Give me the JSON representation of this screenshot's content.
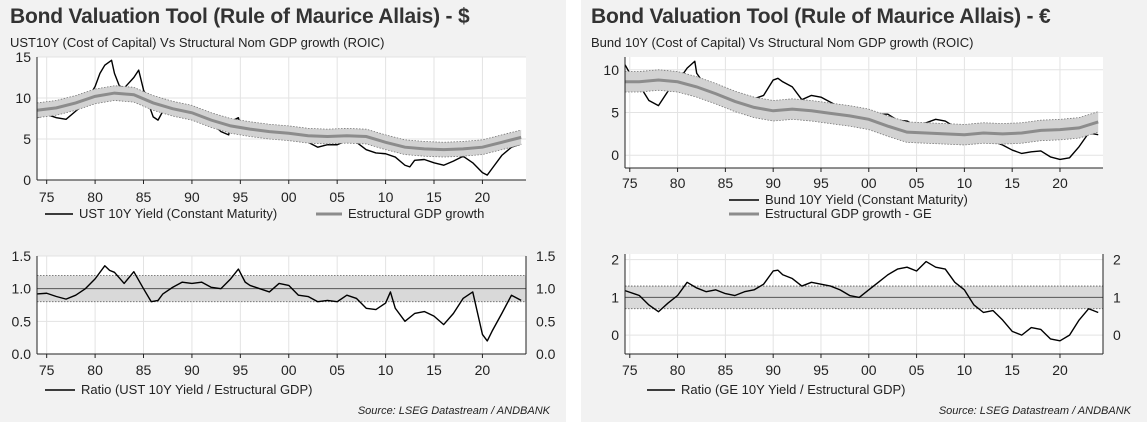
{
  "panels": [
    {
      "title": "Bond Valuation Tool (Rule of Maurice Allais) - $",
      "subtitle": "UST10Y (Cost of Capital) Vs Structural Nom GDP growth (ROIC)",
      "source": "Source: LSEG Datastream / ANDBANK"
    },
    {
      "title": "Bond Valuation Tool (Rule of Maurice Allais) - €",
      "subtitle": "Bund 10Y (Cost of Capital) Vs Structural Nom GDP growth (ROIC)",
      "source": "Source: LSEG Datastream / ANDBANK"
    }
  ],
  "chart_data": [
    {
      "id": "us-yield",
      "type": "line",
      "x_tick_labels": [
        "75",
        "80",
        "85",
        "90",
        "95",
        "00",
        "05",
        "10",
        "15",
        "20"
      ],
      "x_tick_years": [
        1975,
        1980,
        1985,
        1990,
        1995,
        2000,
        2005,
        2010,
        2015,
        2020
      ],
      "xlim": [
        1974,
        2024.5
      ],
      "ylim": [
        0,
        15
      ],
      "y_ticks": [
        0,
        5,
        10,
        15
      ],
      "y_tick_labels": [
        "0",
        "5",
        "10",
        "15"
      ],
      "grid": true,
      "legend_position": "bottom",
      "series": [
        {
          "name": "UST 10Y Yield (Constant Maturity)",
          "color": "#000000",
          "x": [
            1974,
            1975,
            1976,
            1977,
            1978,
            1979,
            1980,
            1980.5,
            1981,
            1981.7,
            1982,
            1982.5,
            1983,
            1984,
            1984.5,
            1985,
            1986,
            1986.5,
            1987,
            1988,
            1989,
            1990,
            1991,
            1992,
            1993,
            1993.8,
            1994,
            1994.8,
            1995,
            1996,
            1997,
            1998,
            1999,
            2000,
            2001,
            2002,
            2003,
            2004,
            2005,
            2006,
            2007,
            2008,
            2009,
            2010,
            2011,
            2012,
            2012.5,
            2013,
            2014,
            2015,
            2016,
            2017,
            2018,
            2019,
            2020,
            2020.5,
            2021,
            2022,
            2023,
            2024
          ],
          "values": [
            7.6,
            8.0,
            7.6,
            7.4,
            8.4,
            9.4,
            11.4,
            13.0,
            14.0,
            14.6,
            13.0,
            11.5,
            11.2,
            12.5,
            13.4,
            11.0,
            7.7,
            7.3,
            8.4,
            8.8,
            8.5,
            8.6,
            7.9,
            7.0,
            5.9,
            5.5,
            7.1,
            7.6,
            6.6,
            6.4,
            6.4,
            5.3,
            5.6,
            6.0,
            5.0,
            4.6,
            4.0,
            4.3,
            4.3,
            4.8,
            4.6,
            3.7,
            3.3,
            3.2,
            2.8,
            1.8,
            1.6,
            2.4,
            2.5,
            2.1,
            1.8,
            2.3,
            2.9,
            2.1,
            0.9,
            0.6,
            1.4,
            3.0,
            4.0,
            4.4
          ]
        },
        {
          "name": "Estructural GDP growth",
          "color": "#8c8c8c",
          "band_color": "#d2d2d2",
          "x": [
            1974,
            1976,
            1978,
            1980,
            1982,
            1984,
            1986,
            1988,
            1990,
            1992,
            1994,
            1996,
            1998,
            2000,
            2002,
            2004,
            2006,
            2008,
            2010,
            2012,
            2014,
            2016,
            2018,
            2020,
            2022,
            2024
          ],
          "values": [
            8.5,
            8.8,
            9.4,
            10.2,
            10.6,
            10.4,
            9.4,
            8.7,
            8.2,
            7.3,
            6.6,
            6.2,
            5.9,
            5.7,
            5.4,
            5.3,
            5.4,
            5.3,
            4.6,
            4.0,
            3.8,
            3.7,
            3.8,
            4.0,
            4.6,
            5.2
          ],
          "band": [
            0.9,
            0.9,
            0.9,
            0.9,
            0.9,
            0.9,
            0.9,
            0.9,
            0.9,
            0.9,
            0.9,
            0.9,
            0.9,
            0.9,
            0.9,
            0.9,
            0.9,
            0.9,
            0.9,
            0.9,
            0.9,
            0.9,
            0.9,
            0.9,
            0.9,
            0.9
          ]
        }
      ]
    },
    {
      "id": "us-ratio",
      "type": "line",
      "x_tick_labels": [
        "75",
        "80",
        "85",
        "90",
        "95",
        "00",
        "05",
        "10",
        "15",
        "20"
      ],
      "x_tick_years": [
        1975,
        1980,
        1985,
        1990,
        1995,
        2000,
        2005,
        2010,
        2015,
        2020
      ],
      "xlim": [
        1974,
        2024.5
      ],
      "ylim": [
        0,
        1.5
      ],
      "y_ticks": [
        0,
        0.5,
        1.0,
        1.5
      ],
      "y_tick_labels": [
        "0.0",
        "0.5",
        "1.0",
        "1.5"
      ],
      "band_range": [
        0.8,
        1.2
      ],
      "reference": 1.0,
      "grid": true,
      "legend_position": "bottom",
      "series": [
        {
          "name": "Ratio (UST 10Y Yield / Estructural GDP)",
          "color": "#000000",
          "x": [
            1974,
            1975,
            1976,
            1977,
            1978,
            1979,
            1980,
            1981,
            1981.5,
            1982,
            1983,
            1984,
            1985,
            1985.8,
            1986.5,
            1987,
            1988,
            1989,
            1990,
            1991,
            1992,
            1993,
            1994,
            1994.8,
            1995.5,
            1996,
            1997,
            1998,
            1999,
            2000,
            2001,
            2002,
            2003,
            2004,
            2005,
            2006,
            2007,
            2008,
            2009,
            2010,
            2010.5,
            2011,
            2012,
            2013,
            2014,
            2015,
            2016,
            2017,
            2018,
            2019,
            2020,
            2020.5,
            2021,
            2022,
            2023,
            2024
          ],
          "values": [
            0.92,
            0.93,
            0.88,
            0.84,
            0.9,
            1.0,
            1.15,
            1.35,
            1.28,
            1.25,
            1.08,
            1.26,
            1.0,
            0.8,
            0.82,
            0.92,
            1.02,
            1.1,
            1.08,
            1.1,
            1.02,
            1.0,
            1.15,
            1.3,
            1.1,
            1.05,
            1.0,
            0.95,
            1.08,
            1.05,
            0.9,
            0.88,
            0.8,
            0.82,
            0.8,
            0.9,
            0.85,
            0.7,
            0.68,
            0.78,
            0.95,
            0.7,
            0.5,
            0.62,
            0.65,
            0.58,
            0.45,
            0.62,
            0.85,
            0.95,
            0.3,
            0.2,
            0.35,
            0.62,
            0.9,
            0.82
          ]
        }
      ]
    },
    {
      "id": "eu-yield",
      "type": "line",
      "x_tick_labels": [
        "75",
        "80",
        "85",
        "90",
        "95",
        "00",
        "05",
        "10",
        "15",
        "20"
      ],
      "x_tick_years": [
        1975,
        1980,
        1985,
        1990,
        1995,
        2000,
        2005,
        2010,
        2015,
        2020
      ],
      "xlim": [
        1974.5,
        2024.5
      ],
      "ylim": [
        -1.5,
        11.5
      ],
      "y_ticks": [
        0,
        5,
        10
      ],
      "y_tick_labels": [
        "0",
        "5",
        "10"
      ],
      "grid": true,
      "legend_position": "bottom",
      "series": [
        {
          "name": "Bund 10Y Yield (Constant Maturity)",
          "color": "#000000",
          "x": [
            1974.5,
            1975,
            1976,
            1977,
            1978,
            1979,
            1980,
            1981,
            1981.8,
            1982,
            1983,
            1984,
            1985,
            1986,
            1987,
            1988,
            1989,
            1990,
            1990.5,
            1991,
            1992,
            1993,
            1994,
            1995,
            1996,
            1997,
            1998,
            1999,
            2000,
            2001,
            2002,
            2003,
            2004,
            2005,
            2006,
            2007,
            2008,
            2009,
            2010,
            2011,
            2012,
            2013,
            2014,
            2015,
            2016,
            2017,
            2018,
            2019,
            2020,
            2021,
            2022,
            2023,
            2024
          ],
          "values": [
            10.6,
            9.6,
            8.2,
            6.4,
            5.8,
            7.5,
            8.6,
            10.2,
            11.0,
            9.6,
            8.0,
            7.8,
            7.0,
            6.0,
            6.2,
            6.6,
            7.0,
            8.8,
            9.0,
            8.6,
            8.0,
            6.5,
            7.0,
            6.8,
            6.2,
            5.6,
            4.6,
            4.5,
            5.2,
            4.8,
            4.8,
            4.1,
            4.0,
            3.4,
            3.8,
            4.2,
            4.0,
            3.3,
            2.8,
            2.6,
            1.5,
            1.6,
            1.2,
            0.6,
            0.2,
            0.4,
            0.5,
            -0.2,
            -0.5,
            -0.3,
            1.0,
            2.6,
            2.4
          ]
        },
        {
          "name": "Estructural GDP growth - GE",
          "color": "#8c8c8c",
          "band_color": "#d2d2d2",
          "x": [
            1974.5,
            1976,
            1978,
            1980,
            1982,
            1984,
            1986,
            1988,
            1990,
            1992,
            1994,
            1996,
            1998,
            2000,
            2002,
            2004,
            2006,
            2008,
            2010,
            2012,
            2014,
            2016,
            2018,
            2020,
            2022,
            2024
          ],
          "values": [
            8.6,
            8.6,
            8.8,
            8.6,
            8.0,
            7.2,
            6.3,
            5.6,
            5.2,
            5.4,
            5.2,
            4.9,
            4.6,
            4.2,
            3.4,
            2.7,
            2.6,
            2.5,
            2.4,
            2.6,
            2.5,
            2.6,
            2.9,
            3.0,
            3.2,
            3.9
          ],
          "band": [
            1.2,
            1.2,
            1.2,
            1.2,
            1.2,
            1.2,
            1.2,
            1.2,
            1.2,
            1.2,
            1.2,
            1.2,
            1.2,
            1.2,
            1.2,
            1.2,
            1.2,
            1.2,
            1.2,
            1.2,
            1.2,
            1.2,
            1.2,
            1.2,
            1.2,
            1.2
          ]
        }
      ]
    },
    {
      "id": "eu-ratio",
      "type": "line",
      "x_tick_labels": [
        "75",
        "80",
        "85",
        "90",
        "95",
        "00",
        "05",
        "10",
        "15",
        "20"
      ],
      "x_tick_years": [
        1975,
        1980,
        1985,
        1990,
        1995,
        2000,
        2005,
        2010,
        2015,
        2020
      ],
      "xlim": [
        1974.5,
        2024.5
      ],
      "ylim": [
        -0.5,
        2.15
      ],
      "y_ticks": [
        0,
        1,
        2
      ],
      "y_tick_labels": [
        "0",
        "1",
        "2"
      ],
      "band_range": [
        0.7,
        1.3
      ],
      "reference": 1.0,
      "grid": true,
      "legend_position": "bottom",
      "series": [
        {
          "name": "Ratio (GE 10Y Yield / Estructural GDP)",
          "color": "#000000",
          "x": [
            1974.5,
            1976,
            1977,
            1978,
            1979,
            1980,
            1981,
            1982,
            1983,
            1984,
            1985,
            1986,
            1987,
            1988,
            1989,
            1990,
            1990.5,
            1991,
            1992,
            1993,
            1994,
            1995,
            1996,
            1997,
            1998,
            1999,
            2000,
            2001,
            2002,
            2003,
            2004,
            2005,
            2006,
            2007,
            2008,
            2009,
            2010,
            2011,
            2012,
            2013,
            2014,
            2015,
            2016,
            2017,
            2018,
            2019,
            2020,
            2021,
            2022,
            2023,
            2024
          ],
          "values": [
            1.18,
            1.05,
            0.8,
            0.62,
            0.85,
            1.05,
            1.4,
            1.25,
            1.15,
            1.2,
            1.1,
            1.05,
            1.15,
            1.2,
            1.35,
            1.7,
            1.72,
            1.6,
            1.5,
            1.3,
            1.4,
            1.35,
            1.3,
            1.2,
            1.05,
            1.0,
            1.2,
            1.4,
            1.6,
            1.75,
            1.8,
            1.7,
            1.95,
            1.8,
            1.75,
            1.4,
            1.2,
            0.8,
            0.6,
            0.65,
            0.4,
            0.1,
            0.0,
            0.2,
            0.15,
            -0.1,
            -0.15,
            0.0,
            0.4,
            0.7,
            0.6
          ]
        }
      ]
    }
  ]
}
